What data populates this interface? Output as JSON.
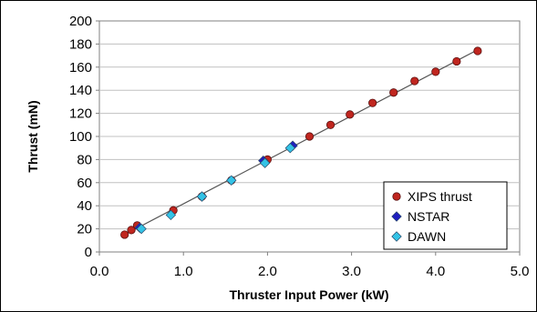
{
  "chart_data": {
    "type": "scatter",
    "title": "",
    "xlabel": "Thruster Input Power (kW)",
    "ylabel": "Thrust (mN)",
    "xlim": [
      0,
      5
    ],
    "ylim": [
      0,
      200
    ],
    "x_ticks": [
      "0.0",
      "1.0",
      "2.0",
      "3.0",
      "4.0",
      "5.0"
    ],
    "y_ticks": [
      "0",
      "20",
      "40",
      "60",
      "80",
      "100",
      "120",
      "140",
      "160",
      "180",
      "200"
    ],
    "grid": "horizontal",
    "legend_position": "bottom-right",
    "fit_line": {
      "x": [
        0.3,
        4.5
      ],
      "y": [
        15,
        175
      ],
      "color": "#555555"
    },
    "series": [
      {
        "name": "XIPS thrust",
        "marker": "circle",
        "color": "#c0261f",
        "x": [
          0.3,
          0.38,
          0.45,
          0.88,
          1.22,
          1.57,
          2.0,
          2.5,
          2.75,
          2.98,
          3.25,
          3.5,
          3.75,
          4.0,
          4.25,
          4.5
        ],
        "y": [
          15,
          19,
          23,
          36,
          48,
          62,
          80,
          100,
          110,
          119,
          129,
          138,
          148,
          156,
          165,
          174
        ]
      },
      {
        "name": "NSTAR",
        "marker": "diamond",
        "color": "#1f1fbf",
        "x": [
          0.48,
          1.22,
          1.95,
          2.3
        ],
        "y": [
          21,
          48,
          79,
          92
        ]
      },
      {
        "name": "DAWN",
        "marker": "diamond",
        "color": "#33c3e6",
        "x": [
          0.5,
          0.85,
          1.22,
          1.57,
          1.97,
          2.27
        ],
        "y": [
          20,
          32,
          48,
          62,
          77,
          90
        ]
      }
    ]
  }
}
